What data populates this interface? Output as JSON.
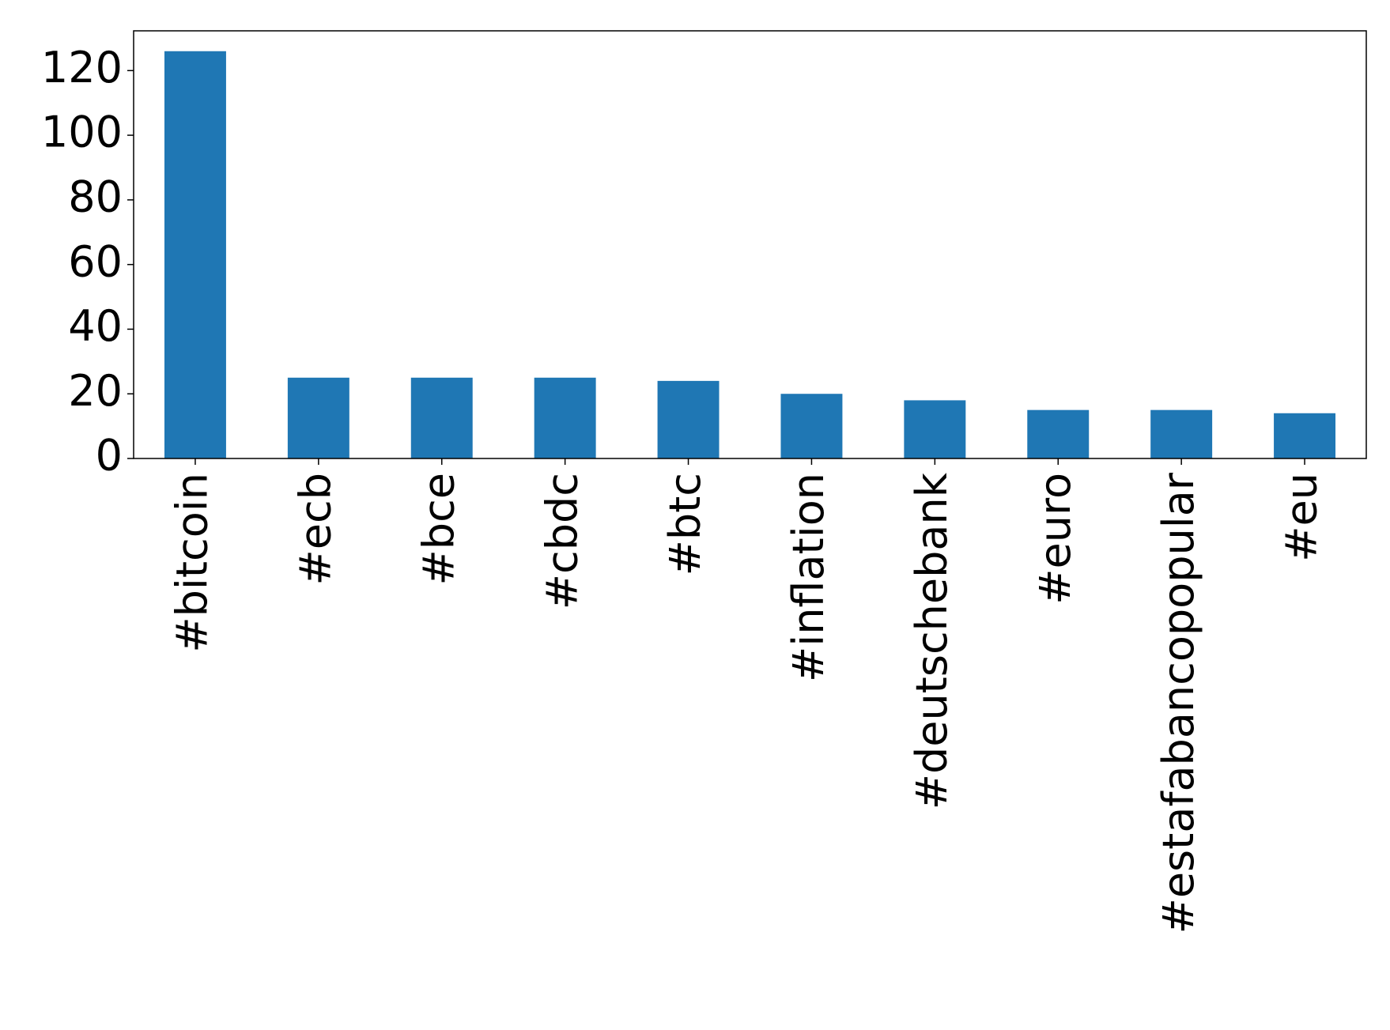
{
  "chart_data": {
    "type": "bar",
    "categories": [
      "#bitcoin",
      "#ecb",
      "#bce",
      "#cbdc",
      "#btc",
      "#inflation",
      "#deutschebank",
      "#euro",
      "#estafabancopopular",
      "#eu"
    ],
    "values": [
      126,
      25,
      25,
      25,
      24,
      20,
      18,
      15,
      15,
      14
    ],
    "color": "#1f77b4",
    "ylim": [
      0,
      132.3
    ],
    "yticks": [
      0,
      20,
      40,
      60,
      80,
      100,
      120
    ],
    "grid": false
  }
}
